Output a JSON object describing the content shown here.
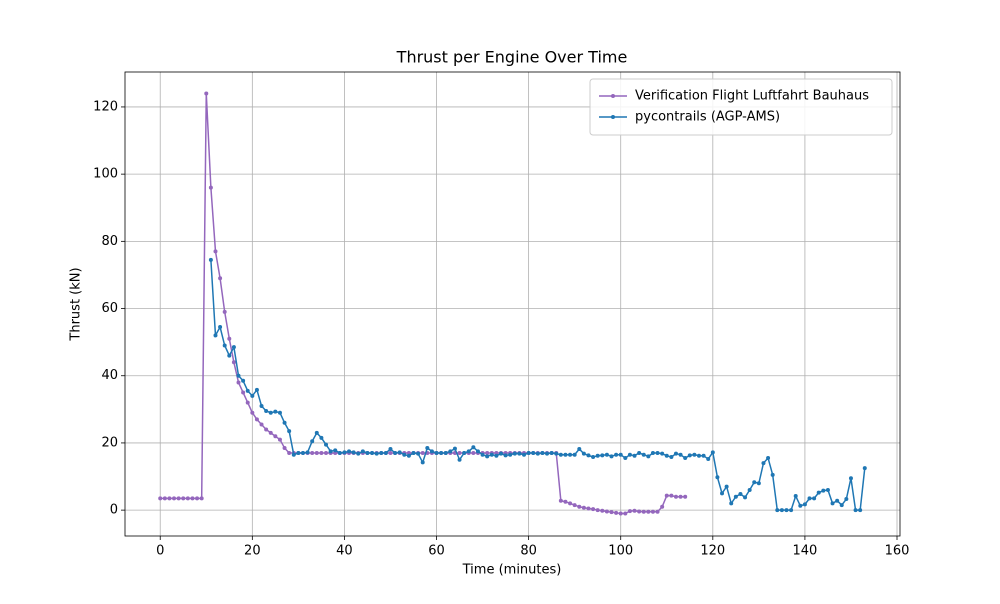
{
  "chart_data": {
    "type": "line",
    "title": "Thrust per Engine Over Time",
    "xlabel": "Time (minutes)",
    "ylabel": "Thrust (kN)",
    "xlim": [
      -7.65,
      160.65
    ],
    "ylim": [
      -7.7,
      130.4
    ],
    "xticks": [
      0,
      20,
      40,
      60,
      80,
      100,
      120,
      140,
      160
    ],
    "yticks": [
      0,
      20,
      40,
      60,
      80,
      100,
      120
    ],
    "grid": true,
    "legend": "upper right",
    "series": [
      {
        "name": "Verification Flight Luftfahrt Bauhaus",
        "color": "#9467bd",
        "x": [
          0,
          1,
          2,
          3,
          4,
          5,
          6,
          7,
          8,
          9,
          10,
          11,
          12,
          13,
          14,
          15,
          16,
          17,
          18,
          19,
          20,
          21,
          22,
          23,
          24,
          25,
          26,
          27,
          28,
          29,
          30,
          31,
          32,
          33,
          34,
          35,
          36,
          37,
          38,
          39,
          40,
          41,
          42,
          43,
          44,
          45,
          46,
          47,
          48,
          49,
          50,
          51,
          52,
          53,
          54,
          55,
          56,
          57,
          58,
          59,
          60,
          61,
          62,
          63,
          64,
          65,
          66,
          67,
          68,
          69,
          70,
          71,
          72,
          73,
          74,
          75,
          76,
          77,
          78,
          79,
          80,
          81,
          82,
          83,
          84,
          85,
          86,
          87,
          88,
          89,
          90,
          91,
          92,
          93,
          94,
          95,
          96,
          97,
          98,
          99,
          100,
          101,
          102,
          103,
          104,
          105,
          106,
          107,
          108,
          109,
          110,
          111,
          112,
          113,
          114
        ],
        "values": [
          3.5,
          3.5,
          3.5,
          3.5,
          3.5,
          3.5,
          3.5,
          3.5,
          3.5,
          3.5,
          124,
          96,
          77,
          69,
          59,
          51,
          44,
          38,
          35,
          32,
          29,
          27,
          25.5,
          24,
          23,
          22,
          21,
          18.5,
          17,
          17,
          17,
          17,
          17,
          17,
          17,
          17,
          17,
          17,
          17,
          17,
          17,
          17,
          17,
          17,
          17,
          17,
          17,
          17,
          17,
          17,
          17,
          17,
          17,
          17,
          17,
          17,
          17,
          17,
          17,
          17,
          17,
          17,
          17,
          17,
          17,
          17,
          17,
          17,
          17,
          17,
          17,
          17,
          17,
          17,
          17,
          17,
          17,
          17,
          17,
          17,
          17,
          17,
          17,
          17,
          17,
          17,
          17,
          2.8,
          2.5,
          2,
          1.5,
          1,
          0.7,
          0.5,
          0.3,
          0,
          -0.2,
          -0.4,
          -0.6,
          -0.8,
          -1,
          -1,
          -0.3,
          -0.2,
          -0.4,
          -0.5,
          -0.5,
          -0.5,
          -0.5,
          1,
          4.3,
          4.3,
          4,
          4,
          4
        ]
      },
      {
        "name": "pycontrails (AGP-AMS)",
        "color": "#1f77b4",
        "x": [
          11,
          12,
          13,
          14,
          15,
          16,
          17,
          18,
          19,
          20,
          21,
          22,
          23,
          24,
          25,
          26,
          27,
          28,
          29,
          30,
          31,
          32,
          33,
          34,
          35,
          36,
          37,
          38,
          39,
          40,
          41,
          42,
          43,
          44,
          45,
          46,
          47,
          48,
          49,
          50,
          51,
          52,
          53,
          54,
          55,
          56,
          57,
          58,
          59,
          60,
          61,
          62,
          63,
          64,
          65,
          66,
          67,
          68,
          69,
          70,
          71,
          72,
          73,
          74,
          75,
          76,
          77,
          78,
          79,
          80,
          81,
          82,
          83,
          84,
          85,
          86,
          87,
          88,
          89,
          90,
          91,
          92,
          93,
          94,
          95,
          96,
          97,
          98,
          99,
          100,
          101,
          102,
          103,
          104,
          105,
          106,
          107,
          108,
          109,
          110,
          111,
          112,
          113,
          114,
          115,
          116,
          117,
          118,
          119,
          120,
          121,
          122,
          123,
          124,
          125,
          126,
          127,
          128,
          129,
          130,
          131,
          132,
          133,
          134,
          135,
          136,
          137,
          138,
          139,
          140,
          141,
          142,
          143,
          144,
          145,
          146,
          147,
          148,
          149,
          150,
          151,
          152,
          153
        ],
        "values": [
          74.5,
          52,
          54.5,
          49,
          46,
          48.5,
          40,
          38.5,
          35.5,
          34,
          35.8,
          31,
          29.5,
          29,
          29.3,
          29,
          26,
          23.5,
          16.5,
          17,
          17,
          17.2,
          20.5,
          23,
          21.5,
          19.5,
          17.5,
          17.8,
          17,
          17.2,
          17.5,
          17.2,
          16.8,
          17.5,
          17,
          17,
          16.8,
          17,
          17,
          18.2,
          17,
          17.2,
          16.5,
          16.2,
          17,
          16.8,
          14.2,
          18.5,
          17.5,
          17,
          17,
          17,
          17.5,
          18.3,
          15,
          17,
          17.5,
          18.7,
          17.5,
          16.5,
          16,
          16.5,
          16.2,
          16.8,
          16.3,
          16.5,
          16.8,
          16.8,
          16.5,
          17,
          17,
          16.8,
          17,
          16.8,
          17,
          16.8,
          16.5,
          16.5,
          16.5,
          16.5,
          18.2,
          16.8,
          16.3,
          15.8,
          16.2,
          16.3,
          16.5,
          16,
          16.5,
          16.5,
          15.5,
          16.5,
          16.2,
          17,
          16.5,
          16,
          17,
          17,
          16.8,
          16.2,
          15.8,
          16.8,
          16.5,
          15.5,
          16.3,
          16.5,
          16.2,
          16.2,
          15.2,
          17.2,
          9.8,
          5,
          7,
          2,
          4,
          4.8,
          3.8,
          6,
          8.3,
          8,
          14,
          15.5,
          10.5,
          0,
          0,
          0,
          0,
          4.2,
          1.3,
          1.7,
          3.5,
          3.5,
          5.2,
          5.8,
          6,
          2,
          2.8,
          1.5,
          3.3,
          9.5,
          0,
          0,
          12.5
        ]
      }
    ]
  }
}
